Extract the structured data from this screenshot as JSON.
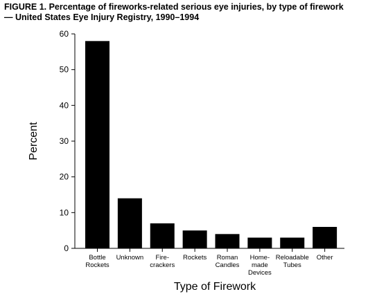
{
  "figure": {
    "title_line1": "FIGURE 1. Percentage of fireworks-related serious eye injuries, by type of firework",
    "title_line2": "— United States Eye Injury Registry, 1990–1994"
  },
  "chart_data": {
    "type": "bar",
    "categories": [
      "Bottle Rockets",
      "Unknown",
      "Fire-crackers",
      "Rockets",
      "Roman Candles",
      "Home-made Devices",
      "Reloadable Tubes",
      "Other"
    ],
    "category_label_lines": [
      [
        "Bottle",
        "Rockets"
      ],
      [
        "Unknown"
      ],
      [
        "Fire-",
        "crackers"
      ],
      [
        "Rockets"
      ],
      [
        "Roman",
        "Candles"
      ],
      [
        "Home-",
        "made",
        "Devices"
      ],
      [
        "Reloadable",
        "Tubes"
      ],
      [
        "Other"
      ]
    ],
    "values": [
      58,
      14,
      7,
      5,
      4,
      3,
      3,
      6
    ],
    "xlabel": "Type of Firework",
    "ylabel": "Percent",
    "ylim": [
      0,
      60
    ],
    "yticks": [
      0,
      10,
      20,
      30,
      40,
      50,
      60
    ],
    "bar_color": "#000000",
    "grid": false,
    "legend": "none"
  }
}
